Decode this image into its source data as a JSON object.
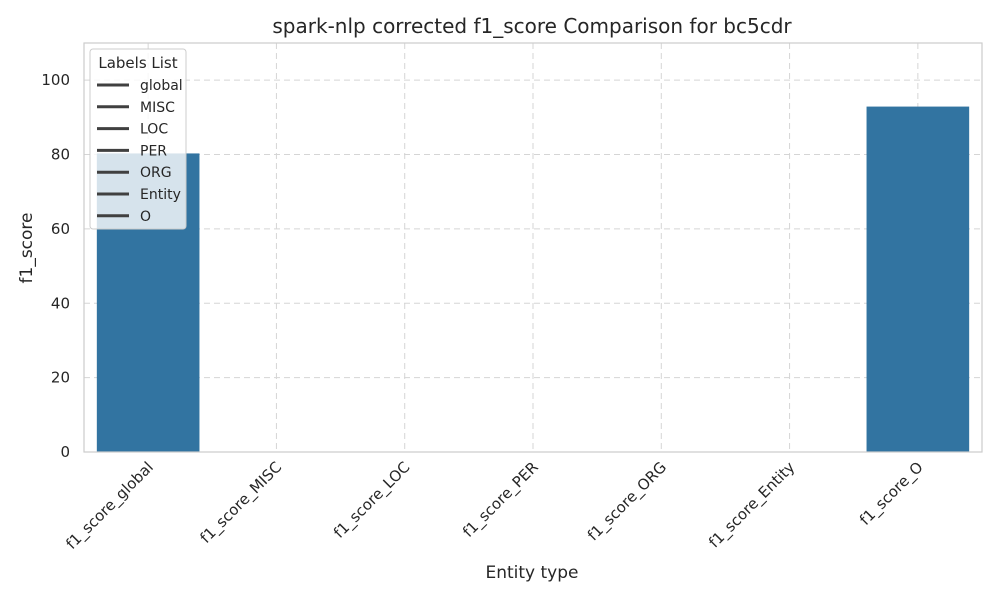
{
  "chart_data": {
    "type": "bar",
    "title": "spark-nlp corrected f1_score Comparison for bc5cdr",
    "xlabel": "Entity type",
    "ylabel": "f1_score",
    "categories": [
      "f1_score_global",
      "f1_score_MISC",
      "f1_score_LOC",
      "f1_score_PER",
      "f1_score_ORG",
      "f1_score_Entity",
      "f1_score_O"
    ],
    "values": [
      80.3,
      null,
      null,
      null,
      null,
      null,
      92.9
    ],
    "ylim": [
      0,
      110
    ],
    "yticks": [
      0,
      20,
      40,
      60,
      80,
      100
    ],
    "grid": true,
    "bar_color": "#3274a1",
    "legend": {
      "title": "Labels List",
      "position": "upper-left",
      "entries": [
        "global",
        "MISC",
        "LOC",
        "PER",
        "ORG",
        "Entity",
        "O"
      ]
    }
  }
}
